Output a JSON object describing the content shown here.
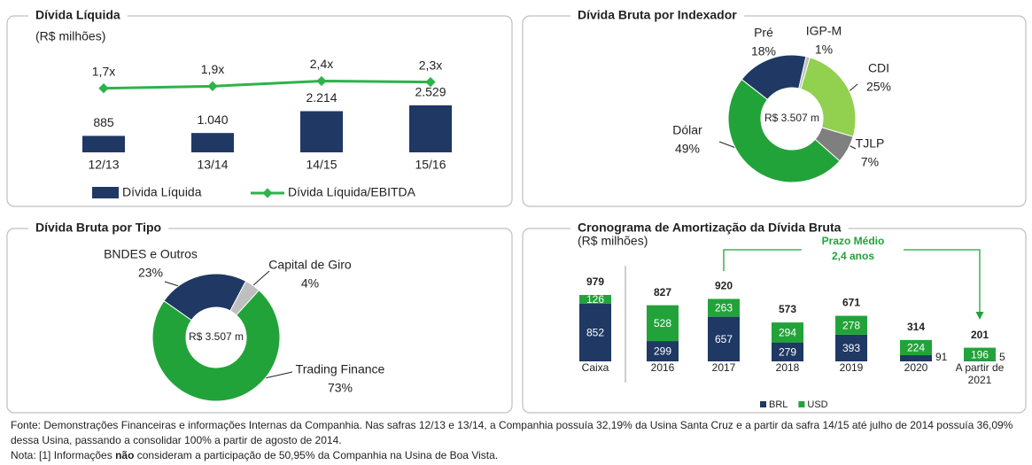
{
  "chart_data": [
    {
      "type": "combo",
      "title": "Dívida Líquida",
      "subtitle": "(R$ milhões)",
      "categories": [
        "12/13",
        "13/14",
        "14/15",
        "15/16"
      ],
      "series": [
        {
          "name": "Dívida Líquida",
          "color": "#1f3864",
          "values": [
            885,
            1040,
            2214,
            2529
          ],
          "value_labels": [
            "885",
            "1.040",
            "2.214",
            "2.529"
          ]
        },
        {
          "name": "Dívida Líquida/EBITDA",
          "color": "#2db34a",
          "type": "line",
          "axis": "y2",
          "values": [
            1.7,
            1.9,
            2.4,
            2.3
          ],
          "value_labels": [
            "1,7x",
            "1,9x",
            "2,4x",
            "2,3x"
          ]
        }
      ],
      "ylim": [
        0,
        5000
      ],
      "y2lim": [
        -4.5,
        4.5
      ],
      "legend": "bottom"
    },
    {
      "type": "donut",
      "title": "Dívida Bruta por Indexador",
      "center_label": "R$ 3.507 m",
      "categories": [
        "Pré",
        "IGP-M",
        "CDI",
        "TJLP",
        "Dólar"
      ],
      "values": [
        18,
        1,
        25,
        7,
        49
      ],
      "value_labels": [
        "18%",
        "1%",
        "25%",
        "7%",
        "49%"
      ],
      "colors": [
        "#1f3864",
        "#bfbfbf",
        "#92d050",
        "#7f7f7f",
        "#22a33a"
      ]
    },
    {
      "type": "donut",
      "title": "Dívida Bruta por Tipo",
      "center_label": "R$ 3.507 m",
      "categories": [
        "BNDES e Outros",
        "Capital de Giro",
        "Trading Finance"
      ],
      "values": [
        23,
        4,
        73
      ],
      "value_labels": [
        "23%",
        "4%",
        "73%"
      ],
      "colors": [
        "#1f3864",
        "#bfbfbf",
        "#22a33a"
      ]
    },
    {
      "type": "stacked_bar",
      "title": "Cronograma de Amortização da Dívida Bruta",
      "subtitle": "(R$ milhões)",
      "annotation": [
        "Prazo Médio",
        "2,4 anos"
      ],
      "categories": [
        "Caixa",
        "2016",
        "2017",
        "2018",
        "2019",
        "2020",
        "A partir de 2021"
      ],
      "series": [
        {
          "name": "BRL",
          "color": "#1f3864",
          "values": [
            852,
            299,
            657,
            279,
            393,
            91,
            5
          ]
        },
        {
          "name": "USD",
          "color": "#22a33a",
          "values": [
            126,
            528,
            263,
            294,
            278,
            224,
            196
          ]
        }
      ],
      "totals": [
        979,
        827,
        920,
        573,
        671,
        314,
        201
      ],
      "ylim": [
        0,
        1200
      ],
      "legend": "bottom"
    }
  ],
  "notes": {
    "source": "Fonte: Demonstrações Financeiras e informações Internas da Companhia. Nas safras 12/13 e 13/14, a Companhia possuía 32,19% da Usina Santa Cruz e a partir da safra 14/15 até julho de 2014 possuía 36,09% dessa Usina, passando a consolidar 100% a partir de agosto de 2014.",
    "note": [
      "Nota: [1] Informações ",
      "não",
      " consideram a participação de 50,95% da Companhia na Usina de Boa Vista."
    ]
  }
}
